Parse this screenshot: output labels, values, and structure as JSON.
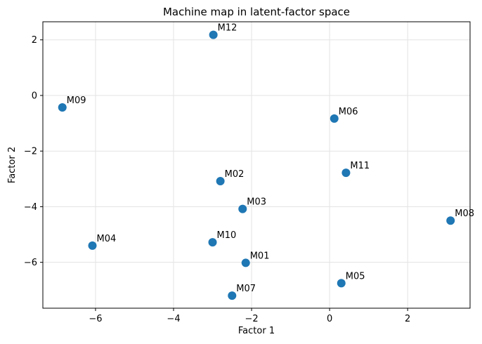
{
  "chart_data": {
    "type": "scatter",
    "title": "Machine map in latent-factor space",
    "xlabel": "Factor 1",
    "ylabel": "Factor 2",
    "xlim": [
      -7.35,
      3.6
    ],
    "ylim": [
      -7.65,
      2.65
    ],
    "xticks": [
      -6,
      -4,
      -2,
      0,
      2
    ],
    "yticks": [
      2,
      0,
      -2,
      -4,
      -6
    ],
    "tick_labels_x": [
      "−6",
      "−4",
      "−2",
      "0",
      "2"
    ],
    "tick_labels_y": [
      "2",
      "0",
      "−2",
      "−4",
      "−6"
    ],
    "grid": true,
    "marker_color": "#1f77b4",
    "points": [
      {
        "label": "M01",
        "x": -2.15,
        "y": -6.02
      },
      {
        "label": "M02",
        "x": -2.8,
        "y": -3.08
      },
      {
        "label": "M03",
        "x": -2.23,
        "y": -4.08
      },
      {
        "label": "M04",
        "x": -6.08,
        "y": -5.4
      },
      {
        "label": "M05",
        "x": 0.3,
        "y": -6.75
      },
      {
        "label": "M06",
        "x": 0.12,
        "y": -0.83
      },
      {
        "label": "M07",
        "x": -2.5,
        "y": -7.2
      },
      {
        "label": "M08",
        "x": 3.1,
        "y": -4.5
      },
      {
        "label": "M09",
        "x": -6.85,
        "y": -0.43
      },
      {
        "label": "M10",
        "x": -3.0,
        "y": -5.28
      },
      {
        "label": "M11",
        "x": 0.42,
        "y": -2.78
      },
      {
        "label": "M12",
        "x": -2.98,
        "y": 2.18
      }
    ]
  }
}
